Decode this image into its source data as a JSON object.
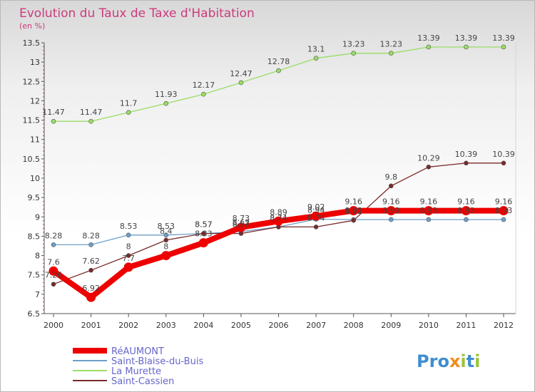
{
  "chart_data": {
    "type": "line",
    "title": "Evolution du Taux de Taxe d'Habitation",
    "subtitle": "(en %)",
    "xlabel": "",
    "ylabel": "",
    "categories": [
      "2000",
      "2001",
      "2002",
      "2003",
      "2004",
      "2005",
      "2006",
      "2007",
      "2008",
      "2009",
      "2010",
      "2011",
      "2012"
    ],
    "ylim": [
      6.5,
      13.5
    ],
    "yticks": [
      "6.5",
      "7",
      "7.5",
      "8",
      "8.5",
      "9",
      "9.5",
      "10",
      "10.5",
      "11",
      "11.5",
      "12",
      "12.5",
      "13",
      "13.5"
    ],
    "series": [
      {
        "name": "RéAUMONT",
        "color": "#ee0000",
        "values": [
          7.6,
          6.92,
          7.7,
          8.0,
          8.33,
          8.73,
          8.89,
          9.02,
          9.16,
          9.16,
          9.16,
          9.16,
          9.16
        ],
        "labels": [
          "7.6",
          "6.92",
          "7.7",
          "8",
          "8.33",
          "8.73",
          "8.89",
          "9.02",
          "9.16",
          "9.16",
          "9.16",
          "9.16",
          "9.16"
        ]
      },
      {
        "name": "Saint-Blaise-du-Buis",
        "color": "#6d9fc9",
        "values": [
          8.28,
          8.28,
          8.53,
          8.53,
          8.57,
          8.62,
          8.74,
          8.94,
          8.93,
          8.93,
          8.93,
          8.93,
          8.93
        ],
        "labels": [
          "8.28",
          "8.28",
          "8.53",
          "8.53",
          "8.57",
          "8.62",
          "8.74",
          "8.94",
          "8.93",
          "8.93",
          "8.93",
          "8.93",
          "8.93"
        ]
      },
      {
        "name": "La Murette",
        "color": "#99dd66",
        "values": [
          11.47,
          11.47,
          11.7,
          11.93,
          12.17,
          12.47,
          12.78,
          13.1,
          13.23,
          13.23,
          13.39,
          13.39,
          13.39
        ],
        "labels": [
          "11.47",
          "11.47",
          "11.7",
          "11.93",
          "12.17",
          "12.47",
          "12.78",
          "13.1",
          "13.23",
          "13.23",
          "13.39",
          "13.39",
          "13.39"
        ]
      },
      {
        "name": "Saint-Cassien",
        "color": "#7a2a2a",
        "values": [
          7.26,
          7.62,
          8.0,
          8.4,
          8.57,
          8.57,
          8.74,
          8.74,
          8.91,
          9.8,
          10.29,
          10.39,
          10.39
        ],
        "labels": [
          "7.26",
          "7.62",
          "8",
          "8.4",
          "8.57",
          "8.57",
          "8.74",
          "8.74",
          "8.91",
          "9.8",
          "10.29",
          "10.39",
          "10.39"
        ]
      }
    ],
    "legend_position": "bottom-left"
  },
  "logo_text": "Proxiti",
  "logo_colors": [
    "#3f8ed0",
    "#3f8ed0",
    "#3f8ed0",
    "#f28c1b",
    "#9cc43c",
    "#3f8ed0",
    "#9cc43c"
  ]
}
